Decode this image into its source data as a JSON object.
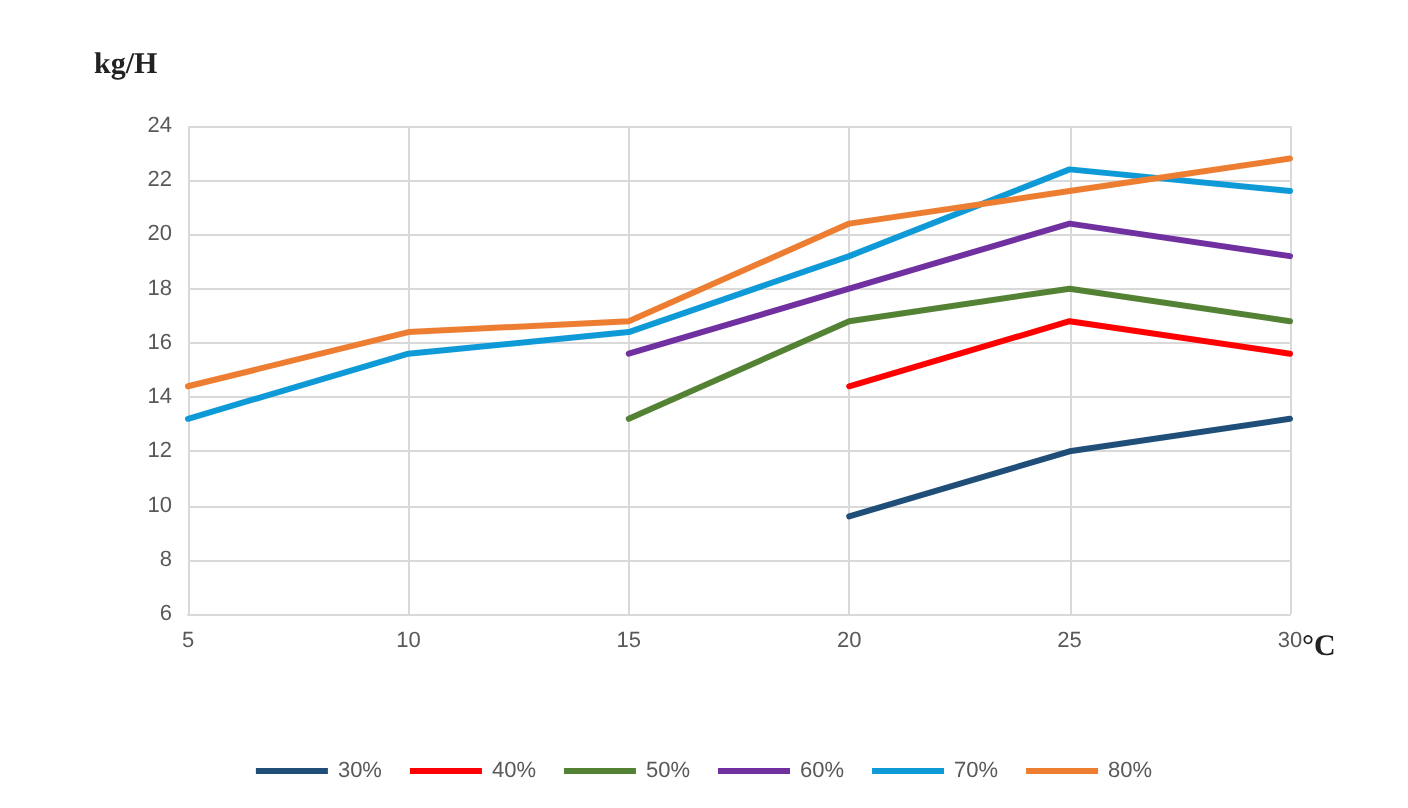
{
  "chart_data": {
    "type": "line",
    "xlabel": "°C",
    "ylabel": "kg/H",
    "categories": [
      "5",
      "10",
      "15",
      "20",
      "25",
      "30"
    ],
    "series": [
      {
        "name": "30%",
        "color": "#1f4e79",
        "values": [
          null,
          null,
          null,
          9.6,
          12.0,
          13.2
        ]
      },
      {
        "name": "40%",
        "color": "#ff0000",
        "values": [
          null,
          null,
          null,
          14.4,
          16.8,
          15.6
        ]
      },
      {
        "name": "50%",
        "color": "#548235",
        "values": [
          null,
          null,
          13.2,
          16.8,
          18.0,
          16.8
        ]
      },
      {
        "name": "60%",
        "color": "#7030a0",
        "values": [
          null,
          null,
          15.6,
          18.0,
          20.4,
          19.2
        ]
      },
      {
        "name": "70%",
        "color": "#0e9ad7",
        "values": [
          13.2,
          15.6,
          16.4,
          19.2,
          22.4,
          21.6
        ]
      },
      {
        "name": "80%",
        "color": "#ed7d31",
        "values": [
          14.4,
          16.4,
          16.8,
          20.4,
          21.6,
          22.8
        ]
      }
    ],
    "ylim": [
      6,
      24
    ],
    "yticks": [
      6,
      8,
      10,
      12,
      14,
      16,
      18,
      20,
      22,
      24
    ],
    "grid": true,
    "legend": "bottom",
    "marker": "none",
    "line_style": "solid"
  }
}
